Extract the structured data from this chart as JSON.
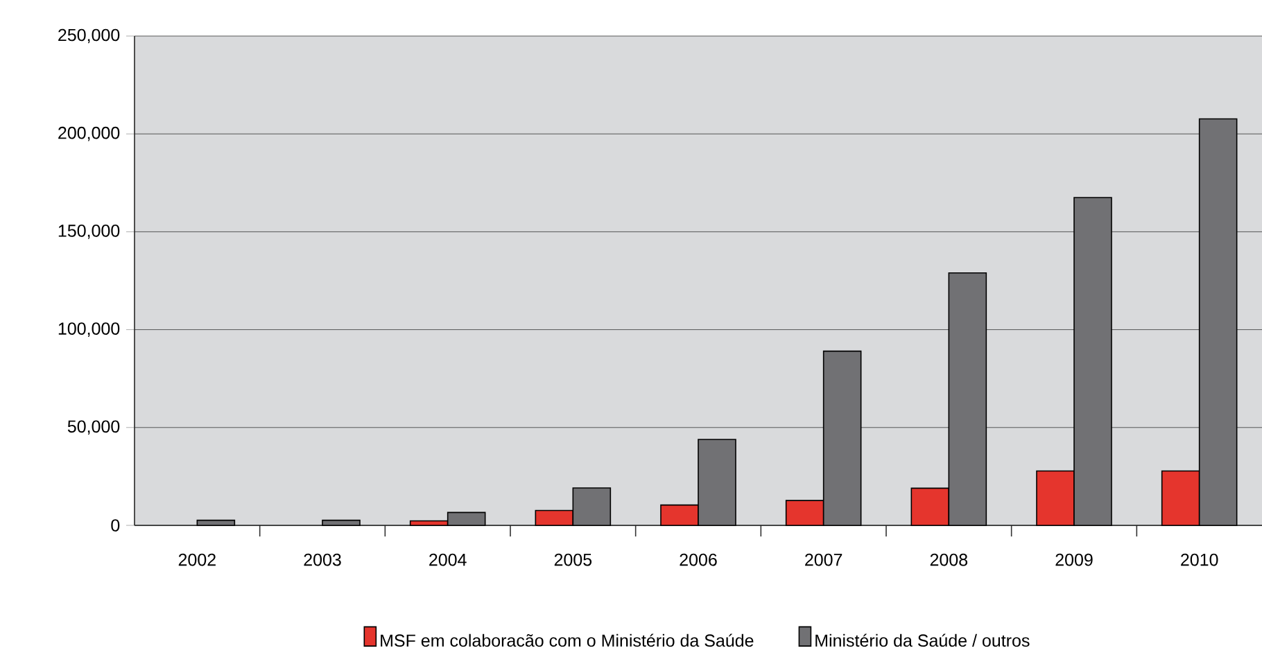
{
  "chart_data": {
    "type": "bar",
    "categories": [
      "2002",
      "2003",
      "2004",
      "2005",
      "2006",
      "2007",
      "2008",
      "2009",
      "2010"
    ],
    "series": [
      {
        "name": "MSF em colaboracão com o Ministério da Saúde",
        "color": "#e5352d",
        "values": [
          null,
          null,
          2300,
          7600,
          10400,
          12700,
          19000,
          27800,
          27800
        ]
      },
      {
        "name": "Ministério da Saúde / outros",
        "color": "#717174",
        "values": [
          2600,
          2600,
          6600,
          19100,
          43900,
          89000,
          129000,
          167500,
          207700
        ]
      }
    ],
    "ylim": [
      0,
      250000
    ],
    "yticks": [
      0,
      {
        "value": 50000,
        "label": "50,000"
      },
      {
        "value": 100000,
        "label": "100,000"
      },
      {
        "value": 150000,
        "label": "150,000"
      },
      {
        "value": 200000,
        "label": "200,000"
      },
      {
        "value": 250000,
        "label": "250,000"
      }
    ],
    "grid": "y",
    "legend": "bottom"
  }
}
